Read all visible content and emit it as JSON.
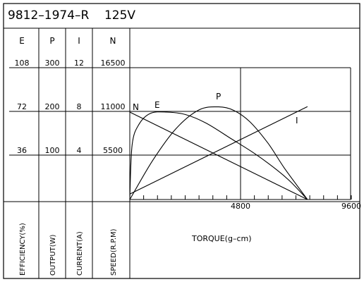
{
  "chart_data": {
    "type": "line",
    "title": "9812–1974–R    125V",
    "xlabel": "TORQUE(g–cm)",
    "xlim": [
      0,
      9600
    ],
    "x_ticks": [
      "4800",
      "9600"
    ],
    "axis_headers": [
      "E",
      "P",
      "I",
      "N"
    ],
    "axis_labels": [
      "EFFICIENCY(%)",
      "OUTPUT(W)",
      "CURRENT(A)",
      "SPEED(R.P.M)"
    ],
    "axis_ticks": {
      "E": [
        "108",
        "72",
        "36"
      ],
      "P": [
        "300",
        "200",
        "100"
      ],
      "I": [
        "12",
        "8",
        "4"
      ],
      "N": [
        "16500",
        "11000",
        "5500"
      ]
    },
    "series": [
      {
        "name": "N",
        "scale": "SPEED(R.P.M)",
        "x": [
          0,
          7700
        ],
        "values": [
          11000,
          0
        ]
      },
      {
        "name": "E",
        "scale": "EFFICIENCY(%)",
        "x": [
          0,
          100,
          400,
          900,
          1600,
          2400,
          3300,
          4400,
          5400,
          6400,
          7000,
          7700
        ],
        "values": [
          0,
          45,
          62,
          71,
          72,
          70,
          63,
          50,
          38,
          24,
          14,
          0
        ]
      },
      {
        "name": "P",
        "scale": "OUTPUT(W)",
        "x": [
          0,
          1000,
          2000,
          3000,
          3850,
          4500,
          5200,
          6000,
          6700,
          7700
        ],
        "values": [
          0,
          90,
          162,
          205,
          212,
          204,
          178,
          128,
          72,
          0
        ]
      },
      {
        "name": "I",
        "scale": "CURRENT(A)",
        "x": [
          0,
          7700
        ],
        "values": [
          0.5,
          8.5
        ]
      }
    ],
    "grid": true
  }
}
